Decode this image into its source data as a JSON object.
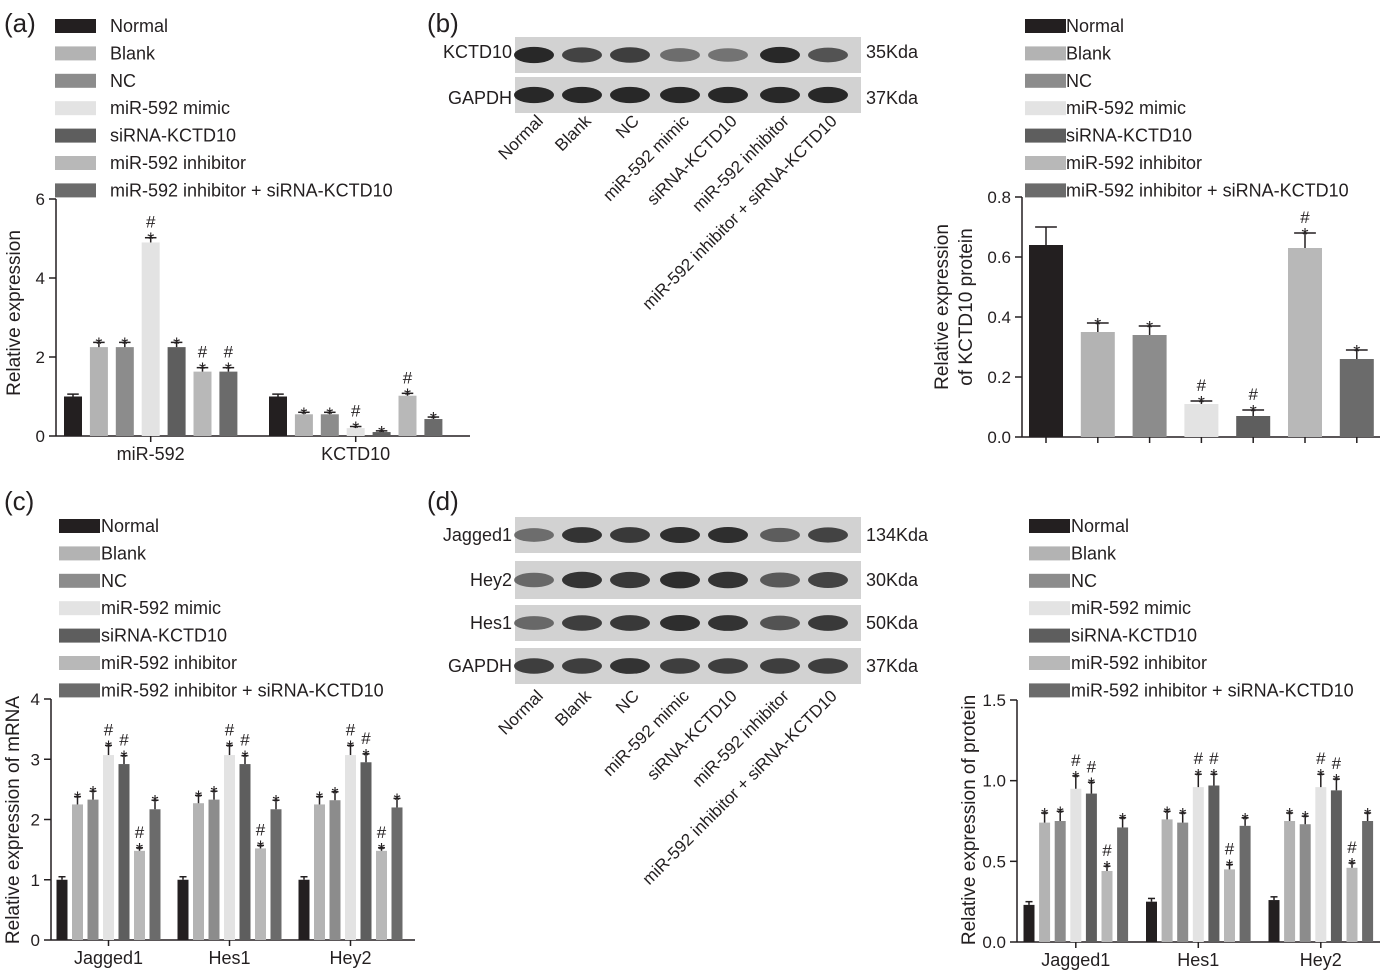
{
  "figure": {
    "series_names": [
      "Normal",
      "Blank",
      "NC",
      "miR-592 mimic",
      "siRNA-KCTD10",
      "miR-592 inhibitor",
      "miR-592 inhibitor + siRNA-KCTD10"
    ],
    "series_colors": [
      "#231f20",
      "#b3b3b3",
      "#8c8c8c",
      "#e3e3e3",
      "#5e5e5e",
      "#b8b8b8",
      "#6b6b6b"
    ],
    "star_symbol": "*",
    "hash_symbol": "#"
  },
  "panels": {
    "a": {
      "label": "(a)",
      "ylabel": "Relative expression",
      "yticks": [
        "0",
        "2",
        "4",
        "6"
      ],
      "groups": [
        "miR-592",
        "KCTD10"
      ]
    },
    "b": {
      "label": "(b)",
      "ylabel_line1": "Relative expression",
      "ylabel_line2": "of KCTD10 protein",
      "yticks": [
        "0.0",
        "0.2",
        "0.4",
        "0.6",
        "0.8"
      ],
      "blot_rows": [
        {
          "name": "KCTD10",
          "size": "35Kda"
        },
        {
          "name": "GAPDH",
          "size": "37Kda"
        }
      ],
      "lane_labels": [
        "Normal",
        "Blank",
        "NC",
        "miR-592 mimic",
        "siRNA-KCTD10",
        "miR-592 inhibitor",
        "miR-592 inhibitor + siRNA-KCTD10"
      ]
    },
    "c": {
      "label": "(c)",
      "ylabel": "Relative expression of mRNA",
      "yticks": [
        "0",
        "1",
        "2",
        "3",
        "4"
      ],
      "groups": [
        "Jagged1",
        "Hes1",
        "Hey2"
      ]
    },
    "d": {
      "label": "(d)",
      "ylabel": "Relative expression of protein",
      "yticks": [
        "0.0",
        "0.5",
        "1.0",
        "1.5"
      ],
      "groups": [
        "Jagged1",
        "Hes1",
        "Hey2"
      ],
      "blot_rows": [
        {
          "name": "Jagged1",
          "size": "134Kda"
        },
        {
          "name": "Hey2",
          "size": "30Kda"
        },
        {
          "name": "Hes1",
          "size": "50Kda"
        },
        {
          "name": "GAPDH",
          "size": "37Kda"
        }
      ],
      "lane_labels": [
        "Normal",
        "Blank",
        "NC",
        "miR-592 mimic",
        "siRNA-KCTD10",
        "miR-592 inhibitor",
        "miR-592 inhibitor + siRNA-KCTD10"
      ]
    }
  },
  "chart_data": [
    {
      "panel": "a",
      "type": "bar",
      "ylabel": "Relative expression",
      "ylim": [
        0,
        6
      ],
      "categories": [
        "miR-592",
        "KCTD10"
      ],
      "series": [
        {
          "name": "Normal",
          "values": [
            1.0,
            1.0
          ],
          "errors": [
            0.06,
            0.06
          ],
          "marks": [
            "",
            ""
          ]
        },
        {
          "name": "Blank",
          "values": [
            2.25,
            0.55
          ],
          "errors": [
            0.12,
            0.05
          ],
          "marks": [
            "*",
            "*"
          ]
        },
        {
          "name": "NC",
          "values": [
            2.25,
            0.55
          ],
          "errors": [
            0.12,
            0.05
          ],
          "marks": [
            "*",
            "*"
          ]
        },
        {
          "name": "miR-592 mimic",
          "values": [
            4.9,
            0.2
          ],
          "errors": [
            0.12,
            0.04
          ],
          "marks": [
            "#*",
            "#*"
          ]
        },
        {
          "name": "siRNA-KCTD10",
          "values": [
            2.25,
            0.1
          ],
          "errors": [
            0.12,
            0.03
          ],
          "marks": [
            "*",
            "*"
          ]
        },
        {
          "name": "miR-592 inhibitor",
          "values": [
            1.63,
            1.02
          ],
          "errors": [
            0.1,
            0.06
          ],
          "marks": [
            "#*",
            "#*"
          ]
        },
        {
          "name": "miR-592 inhibitor + siRNA-KCTD10",
          "values": [
            1.63,
            0.43
          ],
          "errors": [
            0.1,
            0.05
          ],
          "marks": [
            "#*",
            "*"
          ]
        }
      ]
    },
    {
      "panel": "b",
      "type": "bar",
      "ylabel": "Relative expression of KCTD10 protein",
      "ylim": [
        0,
        0.8
      ],
      "categories": [
        "Normal",
        "Blank",
        "NC",
        "miR-592 mimic",
        "siRNA-KCTD10",
        "miR-592 inhibitor",
        "miR-592 inhibitor + siRNA-KCTD10"
      ],
      "series": [
        {
          "name": "KCTD10",
          "values": [
            0.64,
            0.35,
            0.34,
            0.11,
            0.07,
            0.63,
            0.26
          ],
          "errors": [
            0.06,
            0.03,
            0.03,
            0.01,
            0.02,
            0.05,
            0.03
          ],
          "marks": [
            "",
            "*",
            "*",
            "#*",
            "#*",
            "#*",
            "*"
          ]
        }
      ]
    },
    {
      "panel": "c",
      "type": "bar",
      "ylabel": "Relative expression of mRNA",
      "ylim": [
        0,
        4
      ],
      "categories": [
        "Jagged1",
        "Hes1",
        "Hey2"
      ],
      "series": [
        {
          "name": "Normal",
          "values": [
            1.0,
            1.0,
            1.0
          ],
          "errors": [
            0.05,
            0.05,
            0.05
          ],
          "marks": [
            "",
            "",
            ""
          ]
        },
        {
          "name": "Blank",
          "values": [
            2.25,
            2.27,
            2.25
          ],
          "errors": [
            0.13,
            0.13,
            0.13
          ],
          "marks": [
            "*",
            "*",
            "*"
          ]
        },
        {
          "name": "NC",
          "values": [
            2.33,
            2.33,
            2.32
          ],
          "errors": [
            0.14,
            0.14,
            0.14
          ],
          "marks": [
            "*",
            "*",
            "*"
          ]
        },
        {
          "name": "miR-592 mimic",
          "values": [
            3.07,
            3.07,
            3.07
          ],
          "errors": [
            0.16,
            0.16,
            0.16
          ],
          "marks": [
            "#*",
            "#*",
            "#*"
          ]
        },
        {
          "name": "siRNA-KCTD10",
          "values": [
            2.92,
            2.92,
            2.95
          ],
          "errors": [
            0.14,
            0.14,
            0.14
          ],
          "marks": [
            "#*",
            "#*",
            "#*"
          ]
        },
        {
          "name": "miR-592 inhibitor",
          "values": [
            1.48,
            1.52,
            1.48
          ],
          "errors": [
            0.05,
            0.05,
            0.05
          ],
          "marks": [
            "#*",
            "#*",
            "#*"
          ]
        },
        {
          "name": "miR-592 inhibitor + siRNA-KCTD10",
          "values": [
            2.17,
            2.17,
            2.2
          ],
          "errors": [
            0.15,
            0.15,
            0.15
          ],
          "marks": [
            "*",
            "*",
            "*"
          ]
        }
      ]
    },
    {
      "panel": "d",
      "type": "bar",
      "ylabel": "Relative expression of protein",
      "ylim": [
        0,
        1.5
      ],
      "categories": [
        "Jagged1",
        "Hes1",
        "Hey2"
      ],
      "series": [
        {
          "name": "Normal",
          "values": [
            0.23,
            0.25,
            0.26
          ],
          "errors": [
            0.02,
            0.02,
            0.02
          ],
          "marks": [
            "",
            "",
            ""
          ]
        },
        {
          "name": "Blank",
          "values": [
            0.74,
            0.76,
            0.75
          ],
          "errors": [
            0.06,
            0.05,
            0.05
          ],
          "marks": [
            "*",
            "*",
            "*"
          ]
        },
        {
          "name": "NC",
          "values": [
            0.75,
            0.74,
            0.73
          ],
          "errors": [
            0.06,
            0.06,
            0.05
          ],
          "marks": [
            "*",
            "*",
            "*"
          ]
        },
        {
          "name": "miR-592 mimic",
          "values": [
            0.95,
            0.96,
            0.96
          ],
          "errors": [
            0.08,
            0.08,
            0.08
          ],
          "marks": [
            "#*",
            "#*",
            "#*"
          ]
        },
        {
          "name": "siRNA-KCTD10",
          "values": [
            0.92,
            0.97,
            0.94
          ],
          "errors": [
            0.07,
            0.07,
            0.07
          ],
          "marks": [
            "#*",
            "#*",
            "#*"
          ]
        },
        {
          "name": "miR-592 inhibitor",
          "values": [
            0.44,
            0.45,
            0.46
          ],
          "errors": [
            0.03,
            0.03,
            0.03
          ],
          "marks": [
            "#*",
            "#*",
            "#*"
          ]
        },
        {
          "name": "miR-592 inhibitor + siRNA-KCTD10",
          "values": [
            0.71,
            0.72,
            0.75
          ],
          "errors": [
            0.06,
            0.05,
            0.05
          ],
          "marks": [
            "*",
            "*",
            "*"
          ]
        }
      ]
    }
  ]
}
